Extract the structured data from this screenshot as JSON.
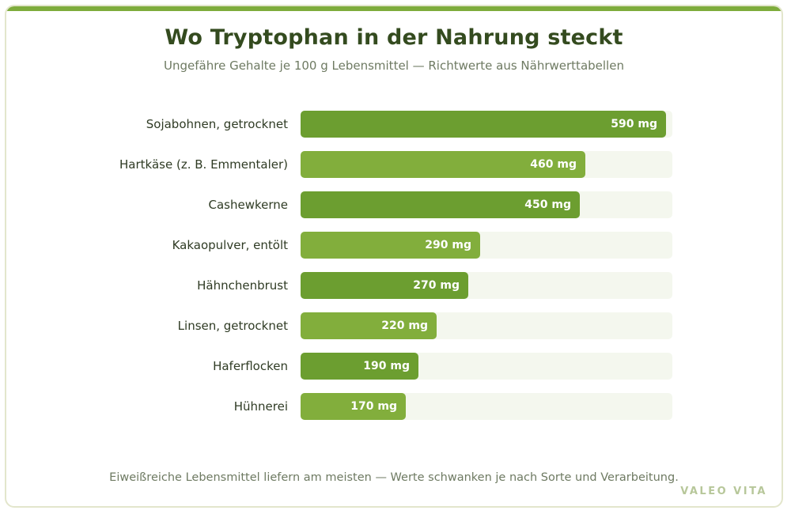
{
  "title": "Wo Tryptophan in der Nahrung steckt",
  "subtitle": "Ungefähre Gehalte je 100 g Lebensmittel — Richtwerte aus Nährwerttabellen",
  "footnote": "Eiweißreiche Lebensmittel liefern am meisten — Werte schwanken je nach Sorte und Verarbeitung.",
  "brand": "VALEO VITA",
  "colors": {
    "bar_dark": "#6c9e30",
    "bar_light": "#82ae3c",
    "track": "#f4f7ee",
    "accent": "#7eac3c"
  },
  "chart_data": {
    "type": "bar",
    "orientation": "horizontal",
    "title": "Wo Tryptophan in der Nahrung steckt",
    "subtitle": "Ungefähre Gehalte je 100 g Lebensmittel — Richtwerte aus Nährwerttabellen",
    "unit": "mg",
    "xlim": [
      0,
      600
    ],
    "grid": false,
    "categories": [
      "Sojabohnen, getrocknet",
      "Hartkäse (z. B. Emmentaler)",
      "Cashewkerne",
      "Kakaopulver, entölt",
      "Hähnchenbrust",
      "Linsen, getrocknet",
      "Haferflocken",
      "Hühnerei"
    ],
    "values": [
      590,
      460,
      450,
      290,
      270,
      220,
      190,
      170
    ],
    "value_labels": [
      "590 mg",
      "460 mg",
      "450 mg",
      "290 mg",
      "270 mg",
      "220 mg",
      "190 mg",
      "170 mg"
    ]
  }
}
